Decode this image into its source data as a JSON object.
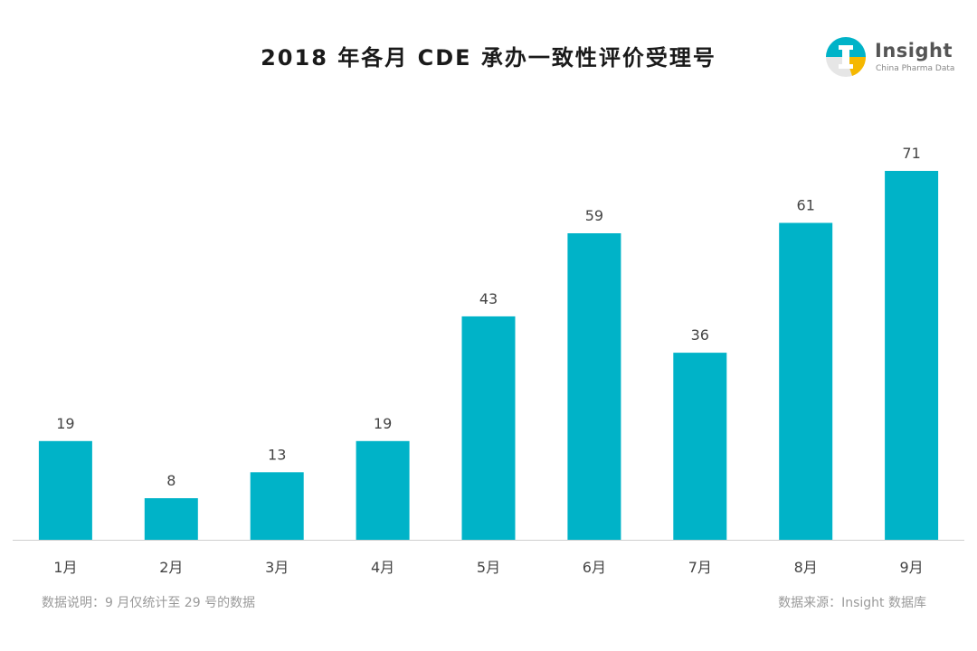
{
  "header": {
    "title": "2018 年各月 CDE 承办一致性评价受理号"
  },
  "logo": {
    "name": "Insight",
    "tagline": "China Pharma Data",
    "colors": [
      "#00b3c8",
      "#f5b800",
      "#cccccc"
    ]
  },
  "footer": {
    "note": "数据说明：9 月仅统计至 29 号的数据",
    "source": "数据来源：Insight 数据库"
  },
  "chart_data": {
    "type": "bar",
    "categories": [
      "1月",
      "2月",
      "3月",
      "4月",
      "5月",
      "6月",
      "7月",
      "8月",
      "9月"
    ],
    "values": [
      19,
      8,
      13,
      19,
      43,
      59,
      36,
      61,
      71
    ],
    "title": "2018 年各月 CDE 承办一致性评价受理号",
    "xlabel": "",
    "ylabel": "",
    "ylim": [
      0,
      80
    ],
    "grid": false,
    "legend": "none",
    "bar_color": "#00b3c8",
    "axis_color": "#cfcfcf"
  }
}
